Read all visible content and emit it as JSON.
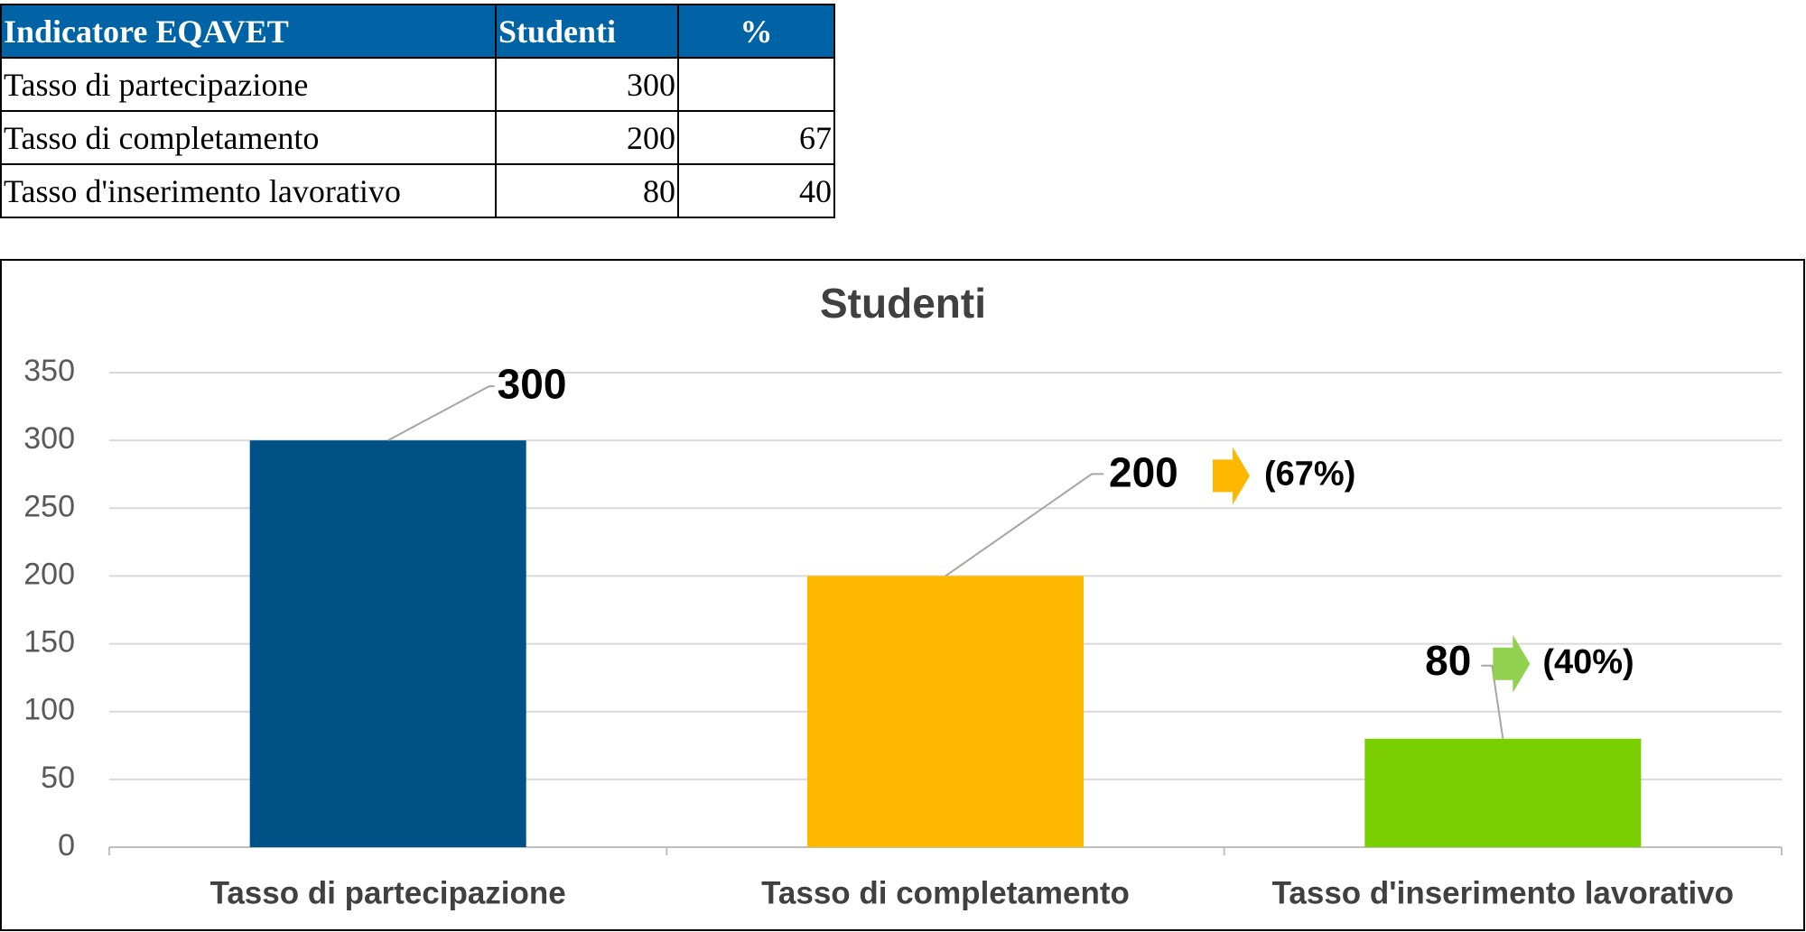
{
  "table": {
    "header": [
      "Indicatore EQAVET",
      "Studenti",
      "%"
    ],
    "rows": [
      [
        "Tasso di partecipazione",
        300,
        null
      ],
      [
        "Tasso di completamento",
        200,
        67
      ],
      [
        "Tasso d'inserimento lavorativo",
        80,
        40
      ]
    ]
  },
  "chart_data": {
    "type": "bar",
    "title": "Studenti",
    "categories": [
      "Tasso di partecipazione",
      "Tasso di completamento",
      "Tasso d'inserimento lavorativo"
    ],
    "values": [
      300,
      200,
      80
    ],
    "colors": [
      "#005286",
      "#FFB800",
      "#7ACF00"
    ],
    "annotations": [
      null,
      "(67%)",
      "(40%)"
    ],
    "annotation_colors": [
      null,
      "#FFB800",
      "#92D050"
    ],
    "ylim": [
      0,
      350
    ],
    "yticks": [
      0,
      50,
      100,
      150,
      200,
      250,
      300,
      350
    ],
    "grid": true
  }
}
